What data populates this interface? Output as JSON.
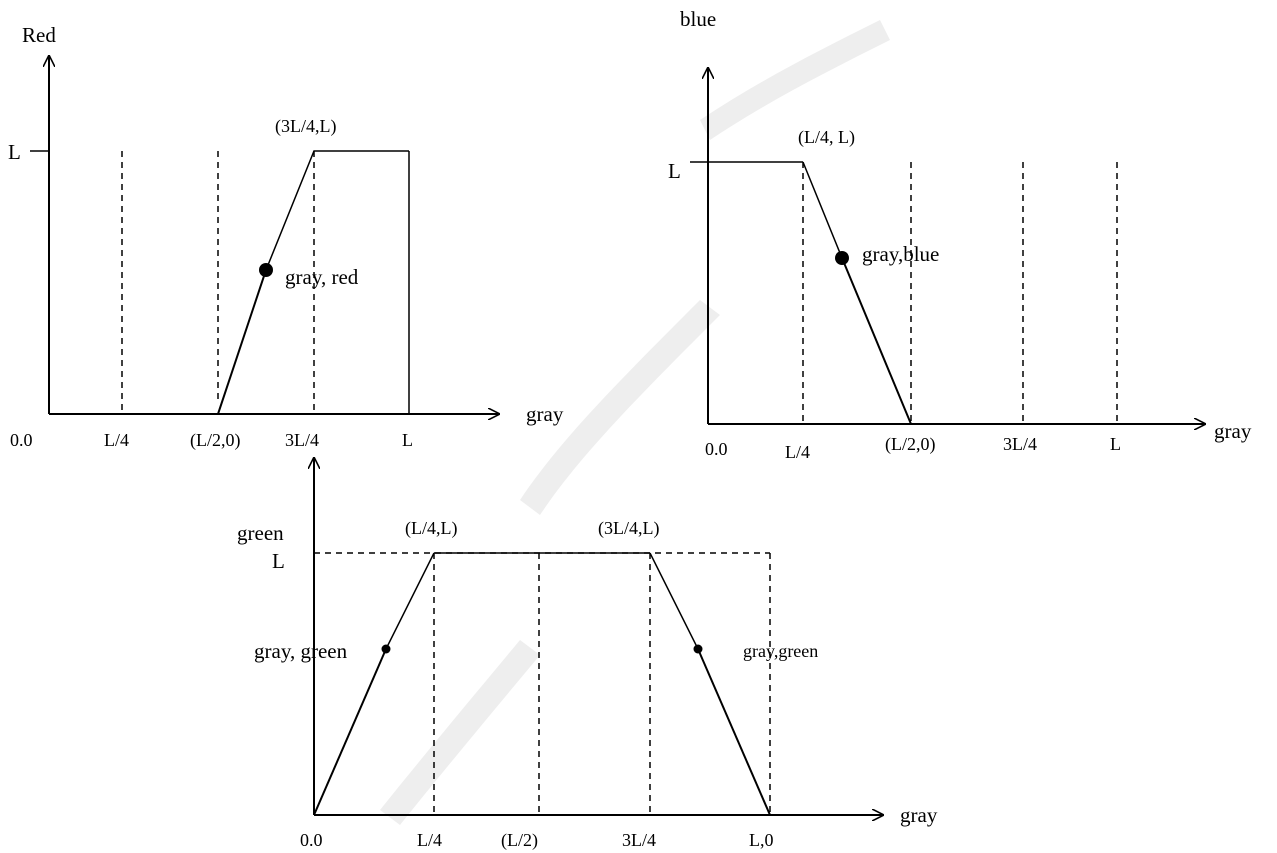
{
  "red_plot": {
    "y_axis_label": "Red",
    "x_axis_label": "gray",
    "y_tick": "L",
    "x_ticks": [
      "0.0",
      "L/4",
      "(L/2,0)",
      "3L/4",
      "L"
    ],
    "corner_label": "(3L/4,L)",
    "point_label": "gray, red"
  },
  "blue_plot": {
    "y_axis_label": "blue",
    "x_axis_label": "gray",
    "y_tick": "L",
    "x_ticks": [
      "0.0",
      "L/4",
      "(L/2,0)",
      "3L/4",
      "L"
    ],
    "corner_label": "(L/4, L)",
    "point_label": "gray,blue"
  },
  "green_plot": {
    "y_axis_label": "green",
    "x_axis_label": "gray",
    "y_tick": "L",
    "x_ticks": [
      "0.0",
      "L/4",
      "(L/2)",
      "3L/4",
      "L,0"
    ],
    "corner_labels": [
      "(L/4,L)",
      "(3L/4,L)"
    ],
    "point_label_left": "gray, green",
    "point_label_right": "gray,green"
  },
  "colors": {
    "ink": "#000000",
    "watermark": "#eeeeee"
  }
}
